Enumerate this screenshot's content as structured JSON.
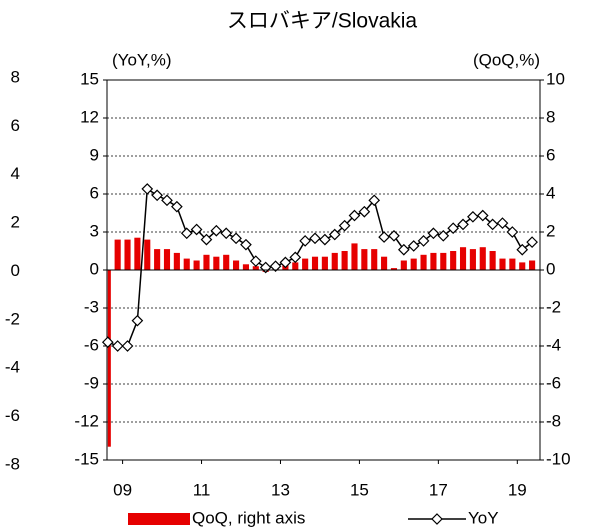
{
  "chart_data": {
    "type": "bar_line",
    "title": "スロバキア/Slovakia",
    "y_label": "(YoY,%)",
    "y2_label": "(QoQ,%)",
    "x": [
      2009,
      2009.25,
      2009.5,
      2009.75,
      2010,
      2010.25,
      2010.5,
      2010.75,
      2011,
      2011.25,
      2011.5,
      2011.75,
      2012,
      2012.25,
      2012.5,
      2012.75,
      2013,
      2013.25,
      2013.5,
      2013.75,
      2014,
      2014.25,
      2014.5,
      2014.75,
      2015,
      2015.25,
      2015.5,
      2015.75,
      2016,
      2016.25,
      2016.5,
      2016.75,
      2017,
      2017.25,
      2017.5,
      2017.75,
      2018,
      2018.25,
      2018.5,
      2018.75,
      2019,
      2019.25,
      2019.5,
      2019.75
    ],
    "series": [
      {
        "name": "QoQ, right axis",
        "color": "#e60000",
        "kind": "bar",
        "axis": "y2",
        "values": [
          -9.3,
          1.6,
          1.6,
          1.7,
          1.6,
          1.1,
          1.1,
          0.9,
          0.6,
          0.5,
          0.8,
          0.7,
          0.8,
          0.5,
          0.3,
          0.2,
          -0.1,
          0.2,
          0.3,
          0.4,
          0.6,
          0.7,
          0.7,
          0.9,
          1.0,
          1.4,
          1.1,
          1.1,
          0.7,
          0.1,
          0.5,
          0.6,
          0.8,
          0.9,
          0.9,
          1.0,
          1.2,
          1.1,
          1.2,
          1.0,
          0.6,
          0.6,
          0.4,
          0.5
        ]
      },
      {
        "name": "YoY",
        "color": "#000000",
        "kind": "line",
        "values": [
          -5.7,
          -6.0,
          -6.0,
          -4.0,
          6.4,
          5.9,
          5.5,
          5.0,
          2.9,
          3.2,
          2.4,
          3.1,
          2.9,
          2.5,
          2.0,
          0.7,
          0.2,
          0.3,
          0.6,
          1.0,
          2.3,
          2.5,
          2.4,
          2.8,
          3.5,
          4.3,
          4.6,
          5.5,
          2.6,
          2.7,
          1.6,
          1.9,
          2.3,
          2.9,
          2.7,
          3.3,
          3.6,
          4.2,
          4.3,
          3.6,
          3.7,
          3.0,
          1.6,
          2.2
        ]
      }
    ],
    "xlim": [
      2008.98,
      2019.95
    ],
    "xticks": [
      {
        "value": 2009.375,
        "label": "09"
      },
      {
        "value": 2011.375,
        "label": "11"
      },
      {
        "value": 2013.375,
        "label": "13"
      },
      {
        "value": 2015.375,
        "label": "15"
      },
      {
        "value": 2017.375,
        "label": "17"
      },
      {
        "value": 2019.375,
        "label": "19"
      }
    ],
    "ylim": [
      -15,
      15
    ],
    "yticks": [
      15,
      12,
      9,
      6,
      3,
      0,
      -3,
      -6,
      -9,
      -12,
      -15
    ],
    "y2lim": [
      -10,
      10
    ],
    "y2ticks": [
      10,
      8,
      6,
      4,
      2,
      0,
      -2,
      -4,
      -6,
      -8,
      -10
    ],
    "y3lim": [
      -8,
      8
    ],
    "y3ticks": [
      8,
      6,
      4,
      2,
      0,
      -2,
      -4,
      -6,
      -8
    ],
    "grid": true,
    "legend": "bottom"
  }
}
